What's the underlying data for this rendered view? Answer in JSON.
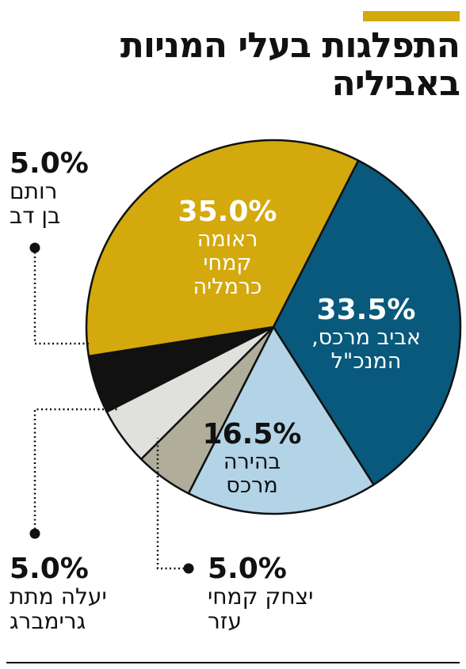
{
  "header": {
    "title_line1": "התפלגות בעלי המניות",
    "title_line2": "באביליה",
    "accent_color": "#d3a90d"
  },
  "chart_data": {
    "type": "pie",
    "title": "התפלגות בעלי המניות באביליה",
    "slices": [
      {
        "value": 33.5,
        "label": "33.5%",
        "name_lines": [
          "אביב מרכס,",
          "המנכ\"ל"
        ],
        "color": "#08597b",
        "text_color": "#ffffff",
        "placement": "inside"
      },
      {
        "value": 16.5,
        "label": "16.5%",
        "name_lines": [
          "בהירה",
          "מרכס"
        ],
        "color": "#b3d3e6",
        "text_color": "#111111",
        "placement": "inside"
      },
      {
        "value": 5.0,
        "label": "5.0%",
        "name_lines": [
          "יצחק קמחי",
          "עזר"
        ],
        "color": "#b0ae9b",
        "text_color": "#111111",
        "placement": "callout"
      },
      {
        "value": 5.0,
        "label": "5.0%",
        "name_lines": [
          "יעלה מתת",
          "גרימברג"
        ],
        "color": "#e0e1dc",
        "text_color": "#111111",
        "placement": "callout"
      },
      {
        "value": 5.0,
        "label": "5.0%",
        "name_lines": [
          "רותם",
          "בן דב"
        ],
        "color": "#111111",
        "text_color": "#111111",
        "placement": "callout"
      },
      {
        "value": 35.0,
        "label": "35.0%",
        "name_lines": [
          "ראומה",
          "קמחי",
          "כרמליה"
        ],
        "color": "#d3a90d",
        "text_color": "#ffffff",
        "placement": "inside"
      }
    ]
  }
}
